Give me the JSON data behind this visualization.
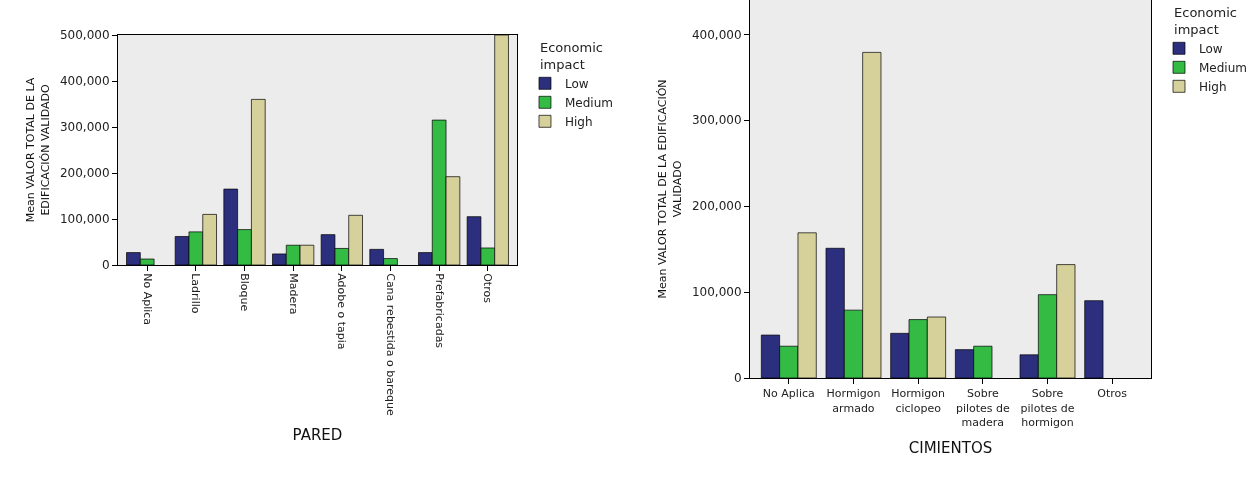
{
  "chart_data": [
    {
      "type": "bar",
      "xlabel": "PARED",
      "ylabel": "Mean VALOR TOTAL DE LA EDIFICACIÓN VALIDADO",
      "legend_title": "Economic impact",
      "legend": "top right",
      "categories": [
        "No Aplica",
        "Ladrillo",
        "Bloque",
        "Madera",
        "Adobe o tapia",
        "Cana rebestida o bareque",
        "Prefabricadas",
        "Otros"
      ],
      "ylim": [
        0,
        500000
      ],
      "yticks": [
        {
          "value": 0,
          "label": "0"
        },
        {
          "value": 100000,
          "label": "100,000"
        },
        {
          "value": 200000,
          "label": "200,000"
        },
        {
          "value": 300000,
          "label": "300,000"
        },
        {
          "value": 400000,
          "label": "400,000"
        },
        {
          "value": 500000,
          "label": "500,000"
        }
      ],
      "series": [
        {
          "name": "Low",
          "color": "#2b2f7e",
          "values": [
            27000,
            62000,
            165000,
            24000,
            66000,
            34000,
            27000,
            105000
          ]
        },
        {
          "name": "Medium",
          "color": "#33bb44",
          "values": [
            13000,
            72000,
            77000,
            43000,
            36000,
            14000,
            315000,
            37000
          ]
        },
        {
          "name": "High",
          "color": "#d6d09a",
          "values": [
            null,
            110000,
            360000,
            43000,
            108000,
            null,
            192000,
            500000
          ]
        }
      ]
    },
    {
      "type": "bar",
      "xlabel": "CIMIENTOS",
      "ylabel": "Mean VALOR TOTAL DE LA EDIFICACIÓN VALIDADO",
      "legend_title": "Economic impact",
      "legend": "top right",
      "categories": [
        "No Aplica",
        "Hormigon armado",
        "Hormigon ciclopeo",
        "Sobre pilotes de madera",
        "Sobre pilotes de hormigon",
        "Otros"
      ],
      "ylim": [
        0,
        440000
      ],
      "yticks": [
        {
          "value": 0,
          "label": "0"
        },
        {
          "value": 100000,
          "label": "100,000"
        },
        {
          "value": 200000,
          "label": "200,000"
        },
        {
          "value": 300000,
          "label": "300,000"
        },
        {
          "value": 400000,
          "label": "400,000"
        }
      ],
      "series": [
        {
          "name": "Low",
          "color": "#2b2f7e",
          "values": [
            50000,
            151000,
            52000,
            33000,
            27000,
            90000
          ]
        },
        {
          "name": "Medium",
          "color": "#33bb44",
          "values": [
            37000,
            79000,
            68000,
            37000,
            97000,
            null
          ]
        },
        {
          "name": "High",
          "color": "#d6d09a",
          "values": [
            169000,
            379000,
            71000,
            null,
            132000,
            null
          ]
        }
      ]
    }
  ]
}
